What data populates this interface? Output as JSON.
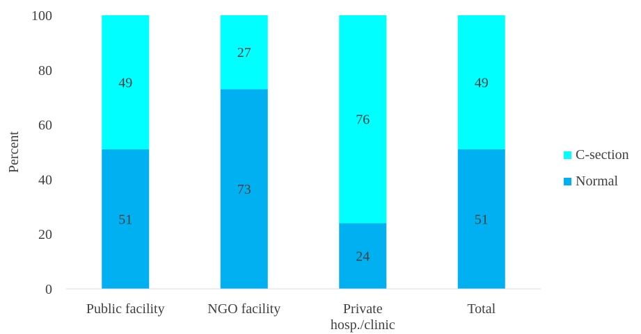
{
  "chart_data": {
    "type": "bar",
    "stacked": true,
    "title": "",
    "xlabel": "",
    "ylabel": "Percent",
    "ylim": [
      0,
      100
    ],
    "yticks": [
      0,
      20,
      40,
      60,
      80,
      100
    ],
    "grid": false,
    "legend_position": "right",
    "categories": [
      [
        "Public facility"
      ],
      [
        "NGO facility"
      ],
      [
        "Private",
        "hosp./clinic"
      ],
      [
        "Total"
      ]
    ],
    "series": [
      {
        "name": "Normal",
        "color": "#00b0f0",
        "values": [
          51,
          73,
          24,
          51
        ]
      },
      {
        "name": "C-section",
        "color": "#00ffff",
        "values": [
          49,
          27,
          76,
          49
        ]
      }
    ],
    "legend_order": [
      "C-section",
      "Normal"
    ]
  }
}
